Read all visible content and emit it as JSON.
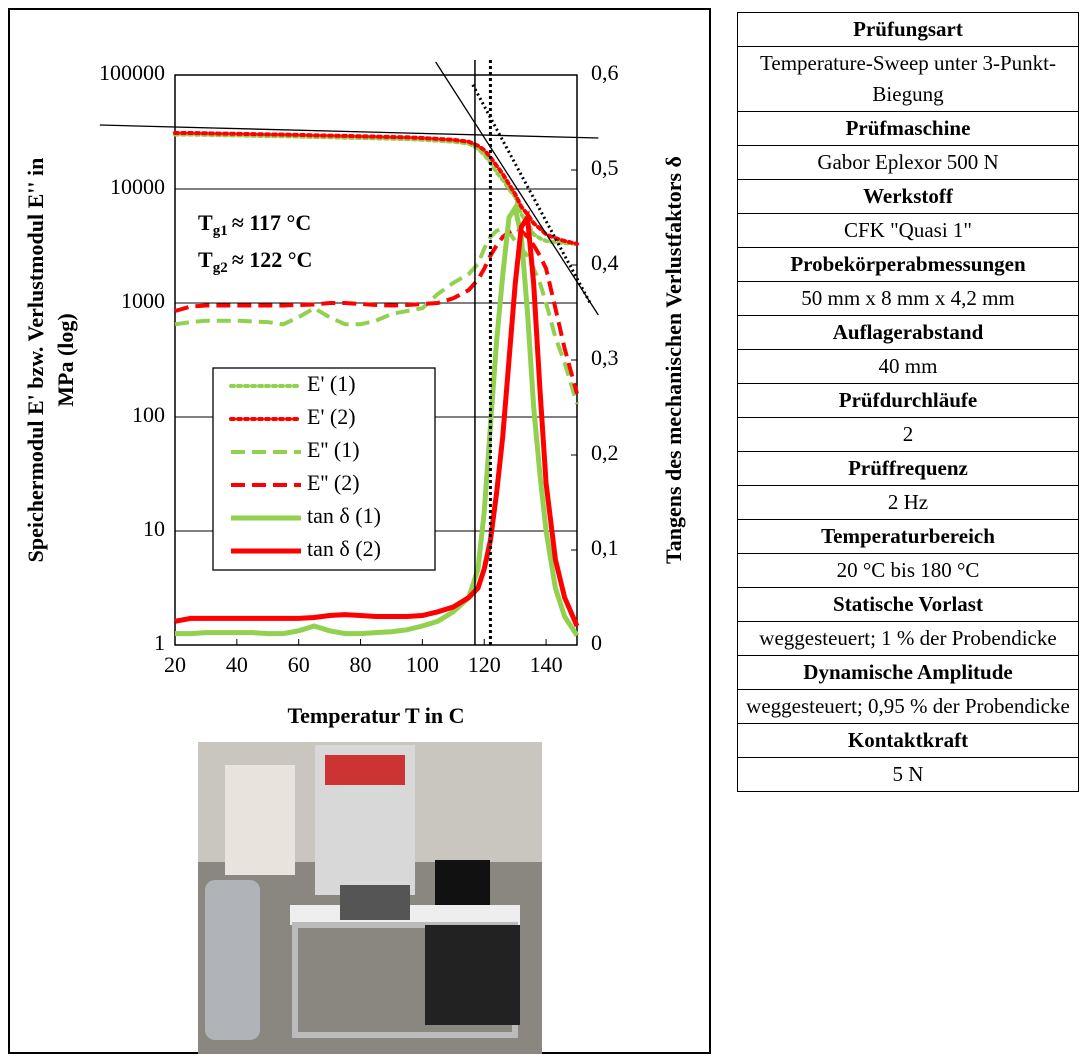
{
  "chart_data": {
    "type": "line",
    "xlabel": "Temperatur T in  C",
    "ylabel": [
      "Speichermodul E' bzw. Verlustmodul E'' in",
      "MPa (log)"
    ],
    "y2label": "Tangens des mechanischen Verlustfaktors δ",
    "x": [
      20,
      25,
      30,
      35,
      40,
      45,
      50,
      55,
      60,
      65,
      70,
      75,
      80,
      85,
      90,
      95,
      100,
      105,
      110,
      115,
      118,
      120,
      122,
      124,
      126,
      128,
      130,
      132,
      134,
      136,
      138,
      140,
      143,
      146,
      150
    ],
    "xlim": [
      20,
      150
    ],
    "xticks": [
      20,
      40,
      60,
      80,
      100,
      120,
      140
    ],
    "ylim": [
      1,
      100000
    ],
    "yscale": "log",
    "yticks": [
      1,
      10,
      100,
      1000,
      10000,
      100000
    ],
    "y2lim": [
      0,
      0.6
    ],
    "y2ticks": [
      0,
      {
        "value": 0.1,
        "label": "0,1"
      },
      {
        "value": 0.2,
        "label": "0,2"
      },
      {
        "value": 0.3,
        "label": "0,3"
      },
      {
        "value": 0.4,
        "label": "0,4"
      },
      {
        "value": 0.5,
        "label": "0,5"
      },
      {
        "value": 0.6,
        "label": "0,6"
      }
    ],
    "grid": true,
    "legend": "center-left",
    "series": [
      {
        "name": "E' (1)",
        "color": "#92d050",
        "style": "dotted",
        "values": [
          30000,
          30000,
          29800,
          29600,
          29500,
          29300,
          29100,
          29000,
          28800,
          28600,
          28400,
          28200,
          28000,
          27800,
          27600,
          27400,
          27000,
          26500,
          26000,
          25000,
          22500,
          20000,
          17000,
          14000,
          12000,
          10000,
          8500,
          6000,
          5000,
          4000,
          3700,
          3500,
          3400,
          3350,
          3300
        ]
      },
      {
        "name": "E' (2)",
        "color": "#ff0000",
        "style": "dotted",
        "values": [
          31000,
          31000,
          30800,
          30600,
          30500,
          30300,
          30100,
          30000,
          29800,
          29600,
          29400,
          29200,
          29000,
          28800,
          28600,
          28400,
          28000,
          27500,
          27000,
          26000,
          24000,
          22000,
          19000,
          16000,
          13500,
          11000,
          9000,
          7000,
          6000,
          5000,
          4500,
          4000,
          3700,
          3500,
          3300
        ]
      },
      {
        "name": "E'' (1)",
        "color": "#92d050",
        "style": "dashed",
        "values": [
          650,
          680,
          700,
          700,
          700,
          690,
          680,
          650,
          750,
          900,
          750,
          650,
          650,
          700,
          800,
          850,
          900,
          1200,
          1500,
          1800,
          2200,
          3000,
          3800,
          4300,
          4500,
          4200,
          3500,
          3000,
          2600,
          2000,
          1500,
          1000,
          500,
          300,
          130
        ]
      },
      {
        "name": "E'' (2)",
        "color": "#ff0000",
        "style": "dashed",
        "values": [
          850,
          930,
          950,
          950,
          950,
          950,
          950,
          950,
          960,
          970,
          1000,
          1000,
          980,
          960,
          950,
          960,
          980,
          1000,
          1100,
          1300,
          1600,
          2000,
          2600,
          3200,
          3800,
          4200,
          4500,
          4300,
          3800,
          3200,
          2600,
          2000,
          900,
          400,
          160
        ]
      },
      {
        "name": "tan δ (1)",
        "color": "#92d050",
        "style": "solid",
        "axis": "y2",
        "values": [
          0.012,
          0.012,
          0.013,
          0.013,
          0.013,
          0.013,
          0.012,
          0.012,
          0.015,
          0.02,
          0.015,
          0.012,
          0.012,
          0.013,
          0.014,
          0.016,
          0.02,
          0.025,
          0.035,
          0.05,
          0.08,
          0.14,
          0.23,
          0.32,
          0.39,
          0.45,
          0.46,
          0.43,
          0.35,
          0.25,
          0.18,
          0.12,
          0.06,
          0.03,
          0.01
        ]
      },
      {
        "name": "tan δ (2)",
        "color": "#ff0000",
        "style": "solid",
        "axis": "y2",
        "values": [
          0.025,
          0.028,
          0.028,
          0.028,
          0.028,
          0.028,
          0.028,
          0.028,
          0.028,
          0.029,
          0.031,
          0.032,
          0.031,
          0.03,
          0.03,
          0.03,
          0.031,
          0.035,
          0.04,
          0.05,
          0.06,
          0.08,
          0.11,
          0.16,
          0.22,
          0.3,
          0.38,
          0.44,
          0.45,
          0.38,
          0.27,
          0.17,
          0.09,
          0.05,
          0.02
        ]
      }
    ],
    "reference_lines": [
      {
        "x": 117,
        "style": "solid"
      },
      {
        "x": 122,
        "style": "dotted"
      }
    ],
    "tangents": [
      {
        "x": [
          -4.3,
          156.9
        ],
        "y": [
          36400,
          28000
        ],
        "style": "solid"
      },
      {
        "x": [
          104.3,
          156.9
        ],
        "y": [
          130000,
          785
        ],
        "style": "solid"
      },
      {
        "x": [
          116.3,
          154.6
        ],
        "y": [
          82000,
          960
        ],
        "style": "dotted"
      }
    ],
    "annotations": [
      {
        "text": "T",
        "sub": "g1",
        "rest": "≈ 117 °C"
      },
      {
        "text": "T",
        "sub": "g2",
        "rest": "≈ 122 °C"
      }
    ]
  },
  "table": {
    "rows": [
      {
        "text": "Prüfungsart",
        "header": true
      },
      {
        "text": "Temperature-Sweep unter 3-Punkt-Biegung",
        "header": false
      },
      {
        "text": "Prüfmaschine",
        "header": true
      },
      {
        "text": "Gabor Eplexor 500 N",
        "header": false
      },
      {
        "text": "Werkstoff",
        "header": true
      },
      {
        "text": "CFK \"Quasi 1\"",
        "header": false
      },
      {
        "text": "Probekörperabmessungen",
        "header": true
      },
      {
        "text": "50  mm x 8 mm x 4,2 mm",
        "header": false
      },
      {
        "text": "Auflagerabstand",
        "header": true
      },
      {
        "text": "40 mm",
        "header": false
      },
      {
        "text": "Prüfdurchläufe",
        "header": true
      },
      {
        "text": "2",
        "header": false
      },
      {
        "text": "Prüffrequenz",
        "header": true
      },
      {
        "text": "2 Hz",
        "header": false
      },
      {
        "text": "Temperaturbereich",
        "header": true
      },
      {
        "text": "20 °C bis 180 °C",
        "header": false
      },
      {
        "text": "Statische Vorlast",
        "header": true
      },
      {
        "text": "weggesteuert; 1 % der Probendicke",
        "header": false
      },
      {
        "text": "Dynamische Amplitude",
        "header": true
      },
      {
        "text": "weggesteuert; 0,95 % der Probendicke",
        "header": false
      },
      {
        "text": "Kontaktkraft",
        "header": true
      },
      {
        "text": "5 N",
        "header": false
      }
    ]
  }
}
